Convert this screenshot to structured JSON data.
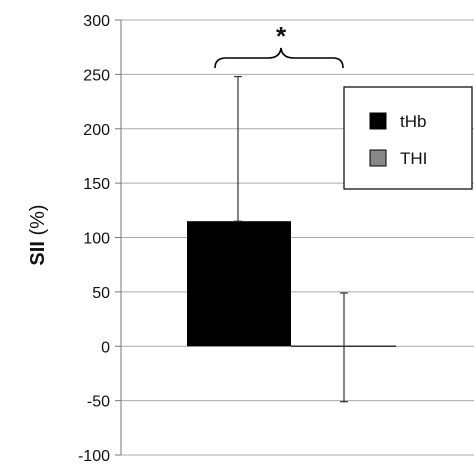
{
  "chart_data": {
    "type": "bar",
    "title": "",
    "xlabel": "",
    "ylabel_bold": "SII",
    "ylabel_rest": " (%)",
    "ylim": [
      -100,
      300
    ],
    "yticks": [
      300,
      250,
      200,
      150,
      100,
      50,
      0,
      -50,
      -100
    ],
    "grid": true,
    "legend_position": "top-right",
    "series": [
      {
        "name": "tHb",
        "value": 115,
        "error_high": 248,
        "error_low": 115,
        "color": "#000000"
      },
      {
        "name": "THI",
        "value": 0,
        "error_high": 49,
        "error_low": -51,
        "color": "#888888"
      }
    ],
    "annotation": "*"
  }
}
